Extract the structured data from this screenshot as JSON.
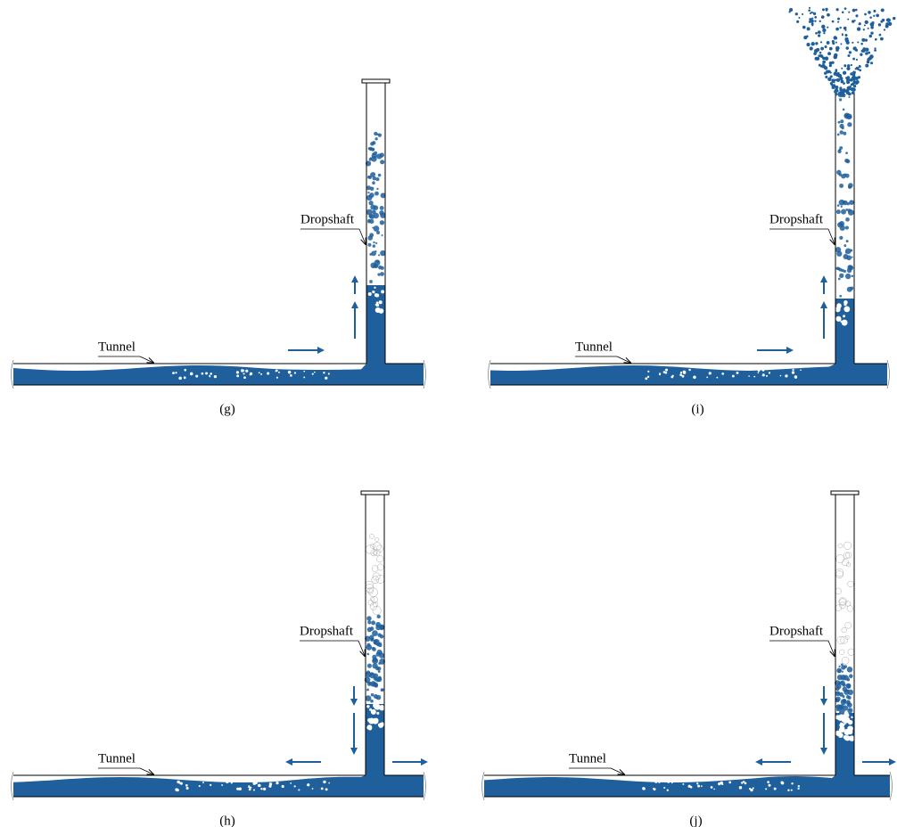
{
  "panels": [
    {
      "caption": "(g)",
      "dropshaft_label": "Dropshaft",
      "tunnel_label": "Tunnel"
    },
    {
      "caption": "(i)",
      "dropshaft_label": "Dropshaft",
      "tunnel_label": "Tunnel"
    },
    {
      "caption": "(h)",
      "dropshaft_label": "Dropshaft",
      "tunnel_label": "Tunnel"
    },
    {
      "caption": "(j)",
      "dropshaft_label": "Dropshaft",
      "tunnel_label": "Tunnel"
    }
  ]
}
